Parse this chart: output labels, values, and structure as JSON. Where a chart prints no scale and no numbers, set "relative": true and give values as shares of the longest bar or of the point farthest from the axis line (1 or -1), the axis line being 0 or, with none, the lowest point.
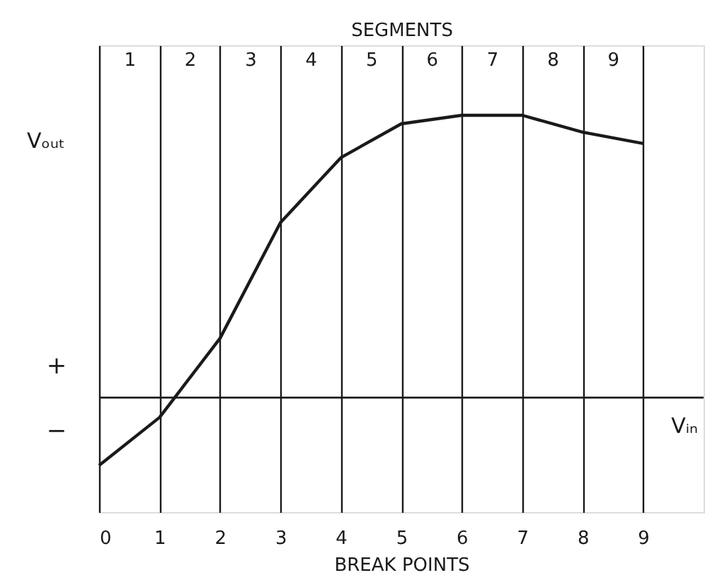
{
  "chart_data": {
    "type": "line",
    "relative": true,
    "xlabel": "BREAK POINTS",
    "ylabel": "Vₒᵤₜ",
    "x2label": "SEGMENTS",
    "x": [
      0,
      1,
      2,
      3,
      4,
      5,
      6,
      7,
      8,
      9
    ],
    "series": [
      {
        "color": "#1a1a1a",
        "values": [
          -0.24,
          -0.07,
          0.21,
          0.62,
          0.85,
          0.97,
          1.0,
          1.0,
          0.94,
          0.9
        ]
      }
    ],
    "xlim": [
      0,
      10
    ],
    "xticks": [
      0,
      1,
      2,
      3,
      4,
      5,
      6,
      7,
      8,
      9
    ],
    "x2lim": [
      0,
      10
    ],
    "x2ticks": [
      {
        "value": 0.5,
        "label": "1"
      },
      {
        "value": 1.5,
        "label": "2"
      },
      {
        "value": 2.5,
        "label": "3"
      },
      {
        "value": 3.5,
        "label": "4"
      },
      {
        "value": 4.5,
        "label": "5"
      },
      {
        "value": 5.5,
        "label": "6"
      },
      {
        "value": 6.5,
        "label": "7"
      },
      {
        "value": 7.5,
        "label": "8"
      },
      {
        "value": 8.5,
        "label": "9"
      }
    ],
    "grid": "x",
    "annotations": [
      "+",
      "−",
      "Vᵢₙ"
    ]
  }
}
